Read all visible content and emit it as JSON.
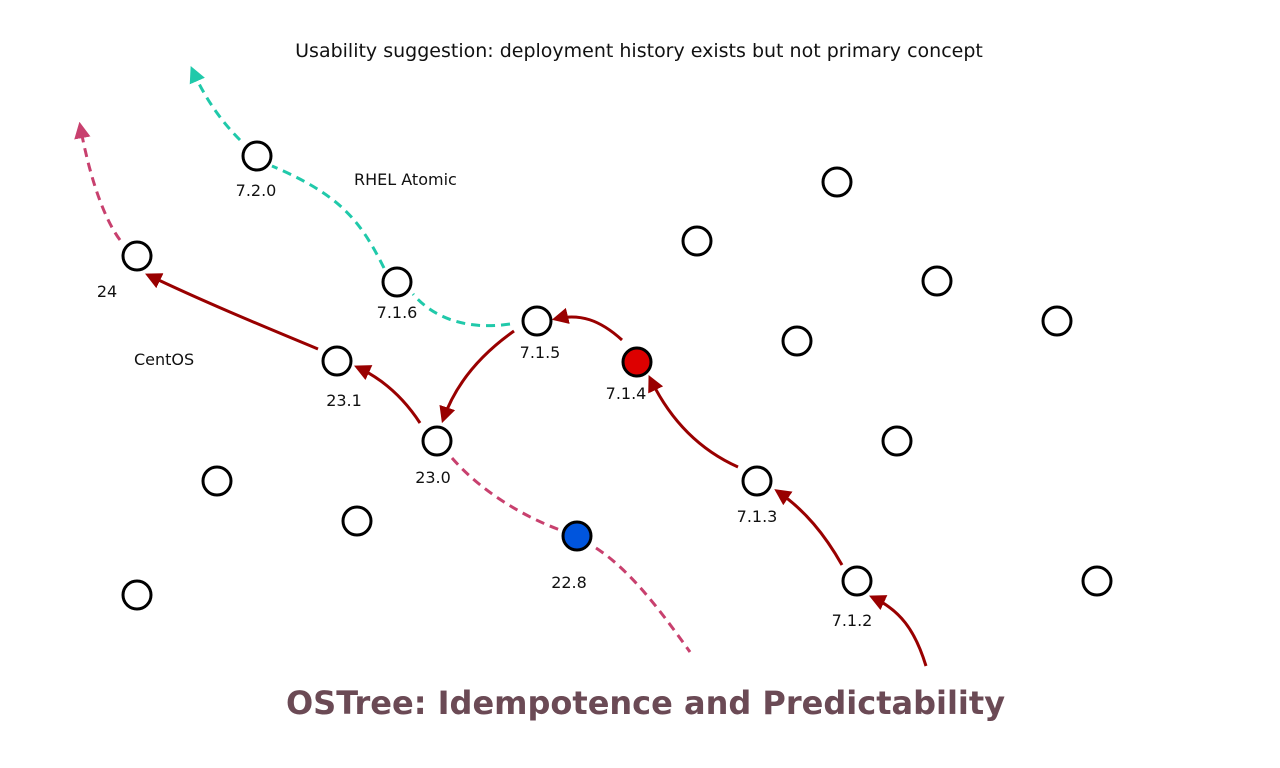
{
  "subtitle": "Usability suggestion: deployment history exists but not primary concept",
  "title": "OSTree: Idempotence and Predictability",
  "branches": {
    "rhel": "RHEL Atomic",
    "centos": "CentOS"
  },
  "versions": {
    "v720": "7.2.0",
    "v716": "7.1.6",
    "v715": "7.1.5",
    "v714": "7.1.4",
    "v713": "7.1.3",
    "v712": "7.1.2",
    "v24": "24",
    "v231": "23.1",
    "v230": "23.0",
    "v228": "22.8"
  },
  "colors": {
    "arrow": "#990000",
    "teal_dashed": "#20c9aa",
    "pink_dashed": "#c8406e",
    "current_node": "#dd0000",
    "booted_node": "#0055dd",
    "title": "#6b4a55"
  }
}
